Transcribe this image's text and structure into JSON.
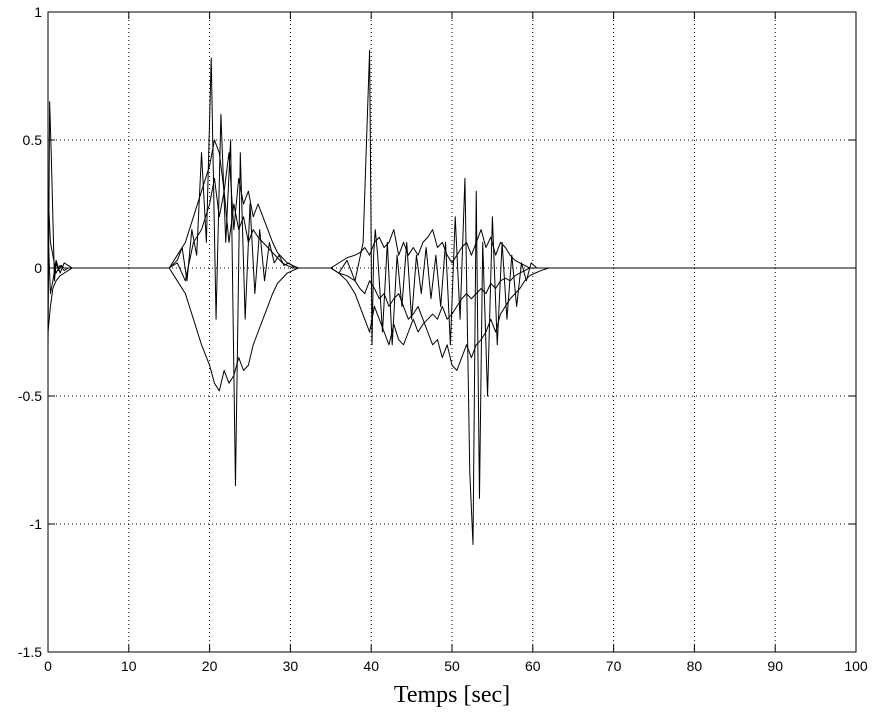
{
  "chart_data": {
    "type": "line",
    "title": "",
    "xlabel": "Temps [sec]",
    "ylabel": "",
    "xlim": [
      0,
      100
    ],
    "ylim": [
      -1.5,
      1
    ],
    "xticks": [
      0,
      10,
      20,
      30,
      40,
      50,
      60,
      70,
      80,
      90,
      100
    ],
    "xtick_labels": [
      "0",
      "10",
      "20",
      "30",
      "40",
      "50",
      "60",
      "70",
      "80",
      "90",
      "100"
    ],
    "yticks": [
      1,
      0.5,
      0,
      -0.5,
      -1,
      -1.5
    ],
    "ytick_labels": [
      "1",
      "0.5",
      "0",
      "-0.5",
      "-1",
      "-1.5"
    ],
    "grid": true,
    "line_color": "#000000",
    "series": [
      {
        "x": [
          0,
          0.2,
          0.4,
          0.6,
          0.8,
          1.0,
          1.3,
          1.6,
          2.0,
          2.5,
          3,
          4,
          5,
          10,
          15,
          16,
          16.6,
          17.2,
          17.8,
          18.4,
          19,
          19.6,
          20.2,
          20.8,
          21.4,
          22,
          22.6,
          23.2,
          23.8,
          24.4,
          25,
          25.6,
          26.2,
          26.8,
          27.4,
          28,
          28.6,
          29.2,
          29.8,
          30.5,
          31.5,
          33,
          35,
          36,
          37,
          38,
          39,
          39.8,
          40.1,
          40.3,
          40.5,
          40.8,
          41.4,
          42,
          42.6,
          43.2,
          43.8,
          44.4,
          45,
          45.6,
          46.2,
          46.8,
          47.4,
          48,
          48.6,
          49.2,
          49.8,
          50.4,
          51,
          51.6,
          52.2,
          52.6,
          53,
          53.4,
          53.8,
          54.4,
          55,
          55.6,
          56.2,
          56.8,
          57.4,
          58,
          58.6,
          59.2,
          59.8,
          60.5,
          61.5,
          62.5,
          65,
          70,
          80,
          90,
          100
        ],
        "y": [
          -0.33,
          0.65,
          0.45,
          0.2,
          -0.05,
          0.02,
          -0.01,
          0.01,
          0,
          0,
          0,
          0,
          0,
          0,
          0,
          0.03,
          0.08,
          -0.05,
          0.15,
          0.05,
          0.45,
          0.1,
          0.82,
          -0.2,
          0.6,
          0.1,
          0.5,
          -0.85,
          0.45,
          -0.2,
          0.25,
          -0.1,
          0.15,
          -0.05,
          0.1,
          0.02,
          0.05,
          0.01,
          0.02,
          0,
          0,
          0,
          0,
          -0.02,
          0.03,
          -0.05,
          0.1,
          0.85,
          -0.3,
          0.05,
          0.15,
          0.05,
          -0.25,
          0.1,
          -0.3,
          0.05,
          -0.15,
          0.1,
          -0.2,
          0.05,
          -0.1,
          0.08,
          -0.12,
          0.05,
          -0.15,
          0.1,
          -0.3,
          0.2,
          -0.2,
          0.35,
          -0.8,
          -1.08,
          0.3,
          -0.9,
          0.1,
          -0.5,
          0.2,
          -0.3,
          0.1,
          -0.2,
          0.05,
          -0.15,
          0.02,
          -0.05,
          0.02,
          0,
          0,
          0,
          0,
          0,
          0,
          0,
          0
        ]
      },
      {
        "x": [
          0,
          0.3,
          0.6,
          1.0,
          1.5,
          2.0,
          2.5,
          3,
          4,
          5,
          10,
          15,
          16,
          17,
          18,
          19,
          20,
          20.6,
          21.2,
          21.8,
          22.4,
          23,
          23.6,
          24.2,
          24.8,
          25.4,
          26,
          26.6,
          27.2,
          27.8,
          28.4,
          29,
          29.6,
          30.3,
          31,
          32,
          33,
          35,
          36,
          37,
          38,
          38.6,
          39.2,
          39.8,
          40.4,
          41,
          41.6,
          42.2,
          42.8,
          43.4,
          44,
          44.6,
          45.2,
          45.8,
          46.4,
          47,
          47.6,
          48.2,
          48.8,
          49.4,
          50,
          50.6,
          51.2,
          51.8,
          52.4,
          53,
          53.6,
          54.2,
          54.8,
          55.4,
          56,
          56.6,
          57.2,
          57.8,
          58.4,
          59,
          59.6,
          60.3,
          61,
          62,
          63,
          65,
          70,
          80,
          90,
          100
        ],
        "y": [
          0.15,
          -0.1,
          -0.05,
          0.03,
          -0.02,
          0.02,
          0.01,
          0,
          0,
          0,
          0,
          0,
          0.05,
          0.1,
          0.2,
          0.3,
          0.4,
          0.5,
          0.45,
          0.3,
          0.45,
          0.15,
          0.35,
          0.25,
          0.3,
          0.2,
          0.25,
          0.2,
          0.15,
          0.1,
          0.06,
          0.04,
          0.02,
          0.01,
          0,
          0,
          0,
          0,
          0.02,
          0.04,
          0.05,
          0.06,
          0.08,
          0.05,
          0.1,
          0.12,
          0.08,
          0.1,
          0.15,
          0.05,
          0.1,
          0.05,
          0.08,
          0.05,
          0.1,
          0.12,
          0.15,
          0.08,
          0.1,
          0.05,
          0.02,
          0.05,
          0.08,
          0.1,
          0.05,
          0.1,
          0.15,
          0.08,
          0.12,
          0.05,
          0.1,
          0.08,
          0.05,
          0.03,
          0.02,
          0.01,
          0,
          0,
          0,
          0,
          0,
          0,
          0,
          0,
          0,
          0
        ]
      },
      {
        "x": [
          0,
          0.3,
          0.6,
          1.0,
          1.5,
          2.0,
          2.5,
          3,
          4,
          5,
          10,
          15,
          16,
          17,
          18,
          19,
          20,
          20.6,
          21.2,
          21.8,
          22.4,
          23,
          23.6,
          24.2,
          24.8,
          25.4,
          26,
          26.6,
          27.2,
          27.8,
          28.4,
          29,
          29.6,
          30.3,
          31,
          32,
          33,
          35,
          36,
          37,
          38,
          38.6,
          39.2,
          39.8,
          40.4,
          41,
          41.6,
          42.2,
          42.8,
          43.4,
          44,
          44.6,
          45.2,
          45.8,
          46.4,
          47,
          47.6,
          48.2,
          48.8,
          49.4,
          50,
          50.6,
          51.2,
          51.8,
          52.4,
          53,
          53.6,
          54.2,
          54.8,
          55.4,
          56,
          56.6,
          57.2,
          57.8,
          58.4,
          59,
          59.6,
          60.3,
          61,
          62,
          63,
          65,
          70,
          80,
          90,
          100
        ],
        "y": [
          -0.25,
          -0.15,
          -0.08,
          -0.05,
          -0.03,
          -0.02,
          -0.01,
          0,
          0,
          0,
          0,
          0,
          -0.05,
          -0.1,
          -0.2,
          -0.3,
          -0.38,
          -0.45,
          -0.48,
          -0.4,
          -0.45,
          -0.42,
          -0.35,
          -0.4,
          -0.38,
          -0.3,
          -0.25,
          -0.2,
          -0.15,
          -0.1,
          -0.06,
          -0.04,
          -0.02,
          -0.01,
          0,
          0,
          0,
          0,
          -0.02,
          -0.05,
          -0.1,
          -0.15,
          -0.2,
          -0.25,
          -0.15,
          -0.2,
          -0.25,
          -0.3,
          -0.22,
          -0.28,
          -0.3,
          -0.25,
          -0.2,
          -0.25,
          -0.22,
          -0.2,
          -0.18,
          -0.2,
          -0.15,
          -0.2,
          -0.18,
          -0.15,
          -0.12,
          -0.1,
          -0.12,
          -0.1,
          -0.08,
          -0.1,
          -0.06,
          -0.08,
          -0.05,
          -0.04,
          -0.05,
          -0.03,
          -0.02,
          -0.01,
          0,
          0,
          0,
          0,
          0,
          0,
          0,
          0,
          0,
          0
        ]
      },
      {
        "x": [
          0,
          0.3,
          0.6,
          1.0,
          1.5,
          2.0,
          2.5,
          3,
          4,
          5,
          10,
          15,
          16,
          17,
          18,
          19,
          20,
          20.6,
          21.2,
          21.8,
          22.4,
          23,
          23.6,
          24.2,
          24.8,
          25.4,
          26,
          26.6,
          27.2,
          27.8,
          28.4,
          29,
          29.6,
          30.3,
          31,
          32,
          33,
          35,
          36,
          37,
          38,
          38.6,
          39.2,
          39.8,
          40.4,
          41,
          41.6,
          42.2,
          42.8,
          43.4,
          44,
          44.6,
          45.2,
          45.8,
          46.4,
          47,
          47.6,
          48.2,
          48.8,
          49.4,
          50,
          50.6,
          51.2,
          51.8,
          52.4,
          53,
          53.6,
          54.2,
          54.8,
          55.4,
          56,
          56.6,
          57.2,
          57.8,
          58.4,
          59,
          59.6,
          60.3,
          61,
          62,
          63,
          65,
          70,
          80,
          90,
          100
        ],
        "y": [
          0.3,
          0.1,
          0.05,
          -0.02,
          0.01,
          -0.01,
          0,
          0,
          0,
          0,
          0,
          0,
          0.02,
          -0.05,
          0.1,
          0.15,
          0.25,
          0.35,
          0.2,
          0.3,
          0.1,
          0.25,
          0.15,
          0.2,
          0.1,
          0.15,
          0.12,
          0.1,
          0.08,
          0.06,
          0.04,
          0.02,
          0.01,
          0,
          0,
          0,
          0,
          0,
          -0.02,
          -0.03,
          -0.05,
          -0.08,
          -0.1,
          -0.05,
          -0.08,
          -0.12,
          -0.1,
          -0.15,
          -0.12,
          -0.1,
          -0.15,
          -0.2,
          -0.18,
          -0.15,
          -0.2,
          -0.25,
          -0.3,
          -0.28,
          -0.35,
          -0.3,
          -0.38,
          -0.4,
          -0.35,
          -0.3,
          -0.35,
          -0.3,
          -0.28,
          -0.25,
          -0.2,
          -0.25,
          -0.18,
          -0.15,
          -0.12,
          -0.1,
          -0.08,
          -0.05,
          -0.03,
          -0.02,
          -0.01,
          0,
          0,
          0,
          0,
          0,
          0,
          0
        ]
      }
    ]
  }
}
